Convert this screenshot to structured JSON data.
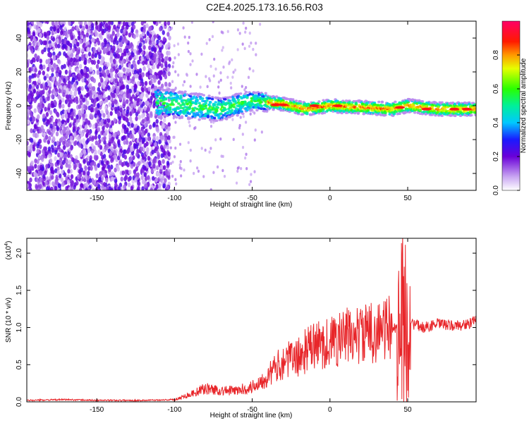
{
  "title": "C2E4.2025.173.16.56.R03",
  "colors": {
    "snr_line": "#e8262a",
    "frame": "#000000"
  },
  "chart_data": [
    {
      "type": "heatmap",
      "xlabel": "Height of straight line (km)",
      "ylabel": "Frequency (Hz)",
      "xlim": [
        -195,
        94
      ],
      "ylim": [
        -50,
        50
      ],
      "xticks": [
        "-150",
        "-100",
        "-50",
        "0",
        "50"
      ],
      "yticks": [
        "-40",
        "-20",
        "0",
        "20",
        "40"
      ],
      "colorbar": {
        "label": "Normalized spectral amplitude",
        "range": [
          0,
          1
        ],
        "ticks": [
          "0.0",
          "0.2",
          "0.4",
          "0.6",
          "0.8"
        ],
        "colormap": "rainbow (white-violet-blue-cyan-green-yellow-red-magenta)"
      },
      "features": {
        "noise_region_km": [
          -195,
          -103
        ],
        "signal_band_center_hz": [
          [
            -110,
            2
          ],
          [
            -90,
            0
          ],
          [
            -70,
            -2
          ],
          [
            -50,
            3
          ],
          [
            -30,
            1
          ],
          [
            -15,
            -2
          ],
          [
            0,
            0
          ],
          [
            20,
            -1
          ],
          [
            40,
            -2
          ],
          [
            50,
            0
          ],
          [
            70,
            -2
          ],
          [
            94,
            -2
          ]
        ]
      }
    },
    {
      "type": "line",
      "xlabel": "Height of straight line (km)",
      "ylabel": "SNR (10 * v/v)",
      "yscale_label": "(x10",
      "yscale_exp": "4",
      "xlim": [
        -195,
        94
      ],
      "ylim": [
        0,
        2.2
      ],
      "xticks": [
        "-150",
        "-100",
        "-50",
        "0",
        "50"
      ],
      "yticks": [
        "0.0",
        "0.5",
        "1.0",
        "1.5",
        "2.0"
      ],
      "series": [
        {
          "x": [
            -195,
            -170,
            -150,
            -120,
            -100,
            -90,
            -80,
            -70,
            -60,
            -50,
            -40,
            -30,
            -20,
            -15,
            -10,
            0,
            10,
            20,
            30,
            40,
            44,
            47,
            50,
            53,
            60,
            70,
            80,
            90,
            94
          ],
          "y": [
            0.02,
            0.03,
            0.02,
            0.02,
            0.03,
            0.1,
            0.18,
            0.15,
            0.15,
            0.2,
            0.35,
            0.55,
            0.6,
            0.7,
            0.75,
            0.8,
            0.88,
            0.9,
            0.95,
            1.0,
            1.0,
            1.05,
            1.1,
            1.05,
            1.0,
            1.05,
            1.02,
            1.05,
            1.1
          ]
        }
      ]
    }
  ]
}
